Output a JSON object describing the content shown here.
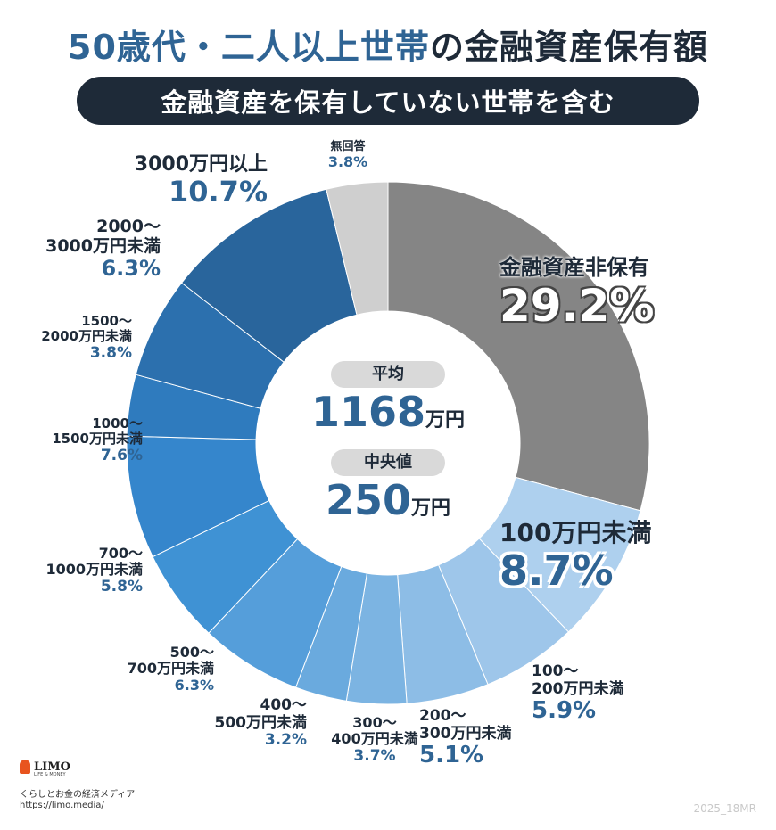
{
  "title": {
    "part1": "50歳代・二人以上世帯",
    "part2": "の金融資産保有額"
  },
  "subtitle": "金融資産を保有していない世帯を含む",
  "center": {
    "mean_label": "平均",
    "mean_value": "1168",
    "median_label": "中央値",
    "median_value": "250",
    "unit": "万円"
  },
  "chart_data": {
    "type": "pie",
    "title": "50歳代・二人以上世帯の金融資産保有額",
    "subtitle": "金融資産を保有していない世帯を含む",
    "unit": "%",
    "slices": [
      {
        "label": "金融資産非保有",
        "value": 29.2,
        "display": "29.2%",
        "color": "#858585"
      },
      {
        "label": "100万円未満",
        "value": 8.7,
        "display": "8.7%",
        "color": "#aed0ee"
      },
      {
        "label": "100〜200万円未満",
        "value": 5.9,
        "display": "5.9%",
        "color": "#9ec6ea"
      },
      {
        "label": "200〜300万円未満",
        "value": 5.1,
        "display": "5.1%",
        "color": "#8dbde6"
      },
      {
        "label": "300〜400万円未満",
        "value": 3.7,
        "display": "3.7%",
        "color": "#7cb4e2"
      },
      {
        "label": "400〜500万円未満",
        "value": 3.2,
        "display": "3.2%",
        "color": "#6aaade"
      },
      {
        "label": "500〜700万円未満",
        "value": 6.3,
        "display": "6.3%",
        "color": "#559eda"
      },
      {
        "label": "700〜1000万円未満",
        "value": 5.8,
        "display": "5.8%",
        "color": "#3f92d4"
      },
      {
        "label": "1000〜1500万円未満",
        "value": 7.6,
        "display": "7.6%",
        "color": "#3586cc"
      },
      {
        "label": "1500〜2000万円未満",
        "value": 3.8,
        "display": "3.8%",
        "color": "#2f7bbe"
      },
      {
        "label": "2000〜3000万円未満",
        "value": 6.3,
        "display": "6.3%",
        "color": "#2c70ae"
      },
      {
        "label": "3000万円以上",
        "value": 10.7,
        "display": "10.7%",
        "color": "#29659c"
      },
      {
        "label": "無回答",
        "value": 3.8,
        "display": "3.8%",
        "color": "#cfcfcf"
      }
    ],
    "labels": [
      {
        "lines": [
          "金融資産非保有"
        ],
        "pct": "29.2%"
      },
      {
        "lines": [
          "100万円未満"
        ],
        "pct": "8.7%"
      },
      {
        "lines": [
          "100〜",
          "200万円未満"
        ],
        "pct": "5.9%"
      },
      {
        "lines": [
          "200〜",
          "300万円未満"
        ],
        "pct": "5.1%"
      },
      {
        "lines": [
          "300〜",
          "400万円未満"
        ],
        "pct": "3.7%"
      },
      {
        "lines": [
          "400〜",
          "500万円未満"
        ],
        "pct": "3.2%"
      },
      {
        "lines": [
          "500〜",
          "700万円未満"
        ],
        "pct": "6.3%"
      },
      {
        "lines": [
          "700〜",
          "1000万円未満"
        ],
        "pct": "5.8%"
      },
      {
        "lines": [
          "1000〜",
          "1500万円未満"
        ],
        "pct": "7.6%"
      },
      {
        "lines": [
          "1500〜",
          "2000万円未満"
        ],
        "pct": "3.8%"
      },
      {
        "lines": [
          "2000〜",
          "3000万円未満"
        ],
        "pct": "6.3%"
      },
      {
        "lines": [
          "3000万円以上"
        ],
        "pct": "10.7%"
      },
      {
        "lines": [
          "無回答"
        ],
        "pct": "3.8%"
      }
    ]
  },
  "footer": {
    "logo": "LIMO",
    "logo_sub": "LIFE & MONEY",
    "tagline": "くらしとお金の経済メディア",
    "url": "https://limo.media/",
    "code": "2025_18MR"
  }
}
